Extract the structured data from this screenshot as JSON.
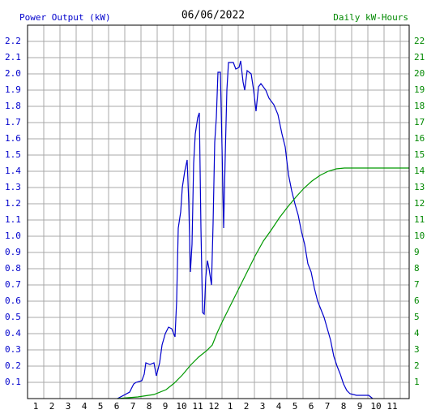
{
  "chart_data": {
    "type": "line",
    "title": "06/06/2022",
    "ylabel": "Power Output (kW)",
    "y2label": "Daily kW-Hours",
    "grid": true,
    "xlim": [
      0.5,
      24.05
    ],
    "xticks": [
      1,
      2,
      3,
      4,
      5,
      6,
      7,
      8,
      9,
      10,
      11,
      12,
      {
        "value": 13,
        "label": "1"
      },
      {
        "value": 14,
        "label": "2"
      },
      {
        "value": 15,
        "label": "3"
      },
      {
        "value": 16,
        "label": "4"
      },
      {
        "value": 17,
        "label": "5"
      },
      {
        "value": 18,
        "label": "6"
      },
      {
        "value": 19,
        "label": "7"
      },
      {
        "value": 20,
        "label": "8"
      },
      {
        "value": 21,
        "label": "9"
      },
      {
        "value": 22,
        "label": "10"
      },
      {
        "value": 23,
        "label": "11"
      }
    ],
    "ylim": [
      0,
      2.3
    ],
    "yticks": [
      0.1,
      0.2,
      0.3,
      0.4,
      0.5,
      0.6,
      0.7,
      0.8,
      0.9,
      {
        "value": 1,
        "label": "1.0"
      },
      1.1,
      1.2,
      1.3,
      1.4,
      1.5,
      1.6,
      1.7,
      1.8,
      1.9,
      {
        "value": 2,
        "label": "2.0"
      },
      2.1,
      2.2
    ],
    "y2lim": [
      0,
      23
    ],
    "y2ticks": [
      1,
      2,
      3,
      4,
      5,
      6,
      7,
      8,
      9,
      10,
      11,
      12,
      13,
      14,
      15,
      16,
      17,
      18,
      19,
      20,
      21,
      22
    ],
    "series": [
      {
        "name": "Power Output (kW)",
        "color": "#0000cc",
        "x": [
          6.05,
          6.8,
          7.05,
          7.2,
          7.55,
          7.7,
          7.8,
          8.05,
          8.3,
          8.45,
          8.65,
          8.8,
          9.0,
          9.2,
          9.4,
          9.6,
          9.7,
          9.8,
          9.95,
          10.05,
          10.2,
          10.35,
          10.45,
          10.55,
          10.65,
          10.75,
          10.85,
          11.0,
          11.1,
          11.2,
          11.3,
          11.4,
          11.5,
          11.6,
          11.7,
          11.85,
          11.95,
          12.05,
          12.15,
          12.25,
          12.4,
          12.5,
          12.6,
          12.7,
          12.8,
          12.9,
          13.2,
          13.35,
          13.55,
          13.65,
          13.8,
          13.9,
          14.05,
          14.3,
          14.45,
          14.6,
          14.75,
          14.9,
          15.2,
          15.4,
          15.7,
          15.95,
          16.2,
          16.4,
          16.6,
          16.8,
          17.0,
          17.2,
          17.4,
          17.6,
          17.8,
          18.0,
          18.2,
          18.4,
          18.6,
          18.8,
          19.0,
          19.2,
          19.4,
          19.6,
          19.8,
          20.0,
          20.2,
          20.4,
          20.8,
          21.55,
          21.8
        ],
        "values": [
          0,
          0.04,
          0.09,
          0.1,
          0.11,
          0.15,
          0.22,
          0.21,
          0.22,
          0.14,
          0.22,
          0.33,
          0.4,
          0.44,
          0.43,
          0.38,
          0.6,
          1.05,
          1.15,
          1.3,
          1.4,
          1.47,
          1.2,
          0.78,
          0.95,
          1.45,
          1.63,
          1.73,
          1.76,
          1.05,
          0.53,
          0.52,
          0.75,
          0.85,
          0.8,
          0.7,
          1.08,
          1.58,
          1.73,
          2.01,
          2.01,
          1.55,
          1.05,
          1.5,
          1.9,
          2.07,
          2.07,
          2.03,
          2.04,
          2.08,
          1.95,
          1.9,
          2.02,
          2.0,
          1.9,
          1.77,
          1.92,
          1.94,
          1.9,
          1.85,
          1.81,
          1.75,
          1.63,
          1.55,
          1.38,
          1.28,
          1.2,
          1.13,
          1.03,
          0.95,
          0.83,
          0.78,
          0.68,
          0.6,
          0.55,
          0.5,
          0.43,
          0.36,
          0.26,
          0.2,
          0.15,
          0.09,
          0.05,
          0.03,
          0.02,
          0.02,
          0
        ]
      },
      {
        "name": "Daily kW-Hours",
        "color": "#009900",
        "axis": "y2",
        "x": [
          6.05,
          7.3,
          8.3,
          9.05,
          9.55,
          10.05,
          10.55,
          11.05,
          11.55,
          11.9,
          12.2,
          12.55,
          13.05,
          13.55,
          14.05,
          14.55,
          15.05,
          15.55,
          16.05,
          16.55,
          17.05,
          17.55,
          18.05,
          18.55,
          19.05,
          19.55,
          20.05,
          24.05
        ],
        "values": [
          0,
          0.1,
          0.25,
          0.55,
          0.95,
          1.45,
          2.05,
          2.55,
          2.95,
          3.3,
          4.05,
          4.8,
          5.8,
          6.8,
          7.8,
          8.8,
          9.7,
          10.4,
          11.15,
          11.8,
          12.4,
          12.95,
          13.4,
          13.75,
          14.0,
          14.15,
          14.2,
          14.2
        ]
      }
    ]
  }
}
